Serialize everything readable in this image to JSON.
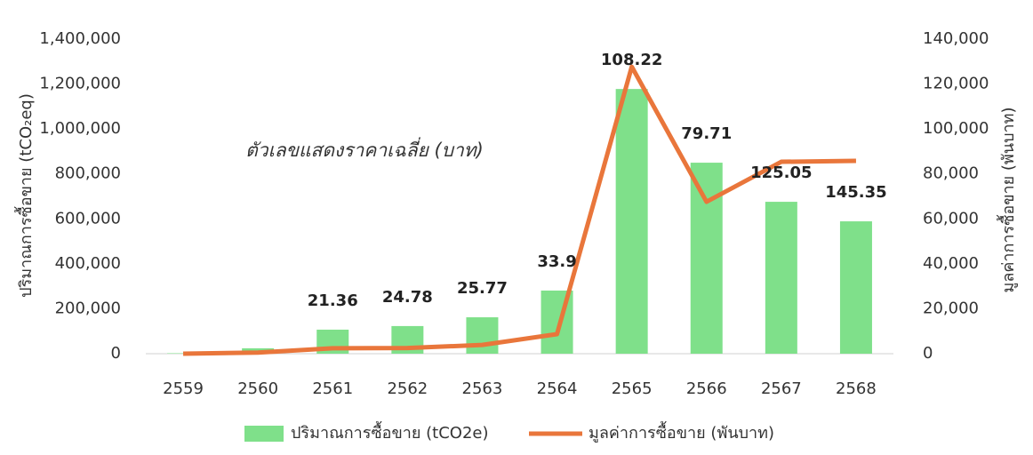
{
  "chart_data": {
    "type": "bar-line",
    "categories": [
      "2559",
      "2560",
      "2561",
      "2562",
      "2563",
      "2564",
      "2565",
      "2566",
      "2567",
      "2568"
    ],
    "series": [
      {
        "name": "ปริมาณการซื้อขาย (tCO2e)",
        "color": "#7fe08a",
        "type": "bar",
        "values": [
          2000,
          24000,
          107000,
          123000,
          162000,
          281000,
          1178000,
          850000,
          676000,
          589000
        ]
      },
      {
        "name": "มูลค่าการซื้อขาย (พันบาท)",
        "color": "#e9763b",
        "type": "line",
        "axis": "y2",
        "values": [
          0,
          500,
          2400,
          2500,
          3900,
          8700,
          127700,
          67600,
          85400,
          85800
        ]
      }
    ],
    "price_labels": [
      null,
      null,
      21.36,
      24.78,
      25.77,
      33.9,
      108.22,
      79.71,
      125.05,
      145.35
    ],
    "annotation": "ตัวเลขแสดงราคาเฉลี่ย (บาท)",
    "ylabel": "ปริมาณการซื้อขาย (tCO₂eq)",
    "y2label": "มูลค่าการซื้อขาย (พันบาท)",
    "ylim": [
      0,
      1400000
    ],
    "yticks": [
      0,
      {
        "value": 200000,
        "label": "200,000"
      },
      {
        "value": 400000,
        "label": "400,000"
      },
      {
        "value": 600000,
        "label": "600,000"
      },
      {
        "value": 800000,
        "label": "800,000"
      },
      {
        "value": 1000000,
        "label": "1,000,000"
      },
      {
        "value": 1200000,
        "label": "1,200,000"
      },
      {
        "value": 1400000,
        "label": "1,400,000"
      }
    ],
    "y2lim": [
      0,
      140000
    ],
    "y2ticks": [
      0,
      {
        "value": 20000,
        "label": "20,000"
      },
      {
        "value": 40000,
        "label": "40,000"
      },
      {
        "value": 60000,
        "label": "60,000"
      },
      {
        "value": 80000,
        "label": "80,000"
      },
      {
        "value": 100000,
        "label": "100,000"
      },
      {
        "value": 120000,
        "label": "120,000"
      },
      {
        "value": 140000,
        "label": "140,000"
      }
    ],
    "legend": "bottom"
  }
}
